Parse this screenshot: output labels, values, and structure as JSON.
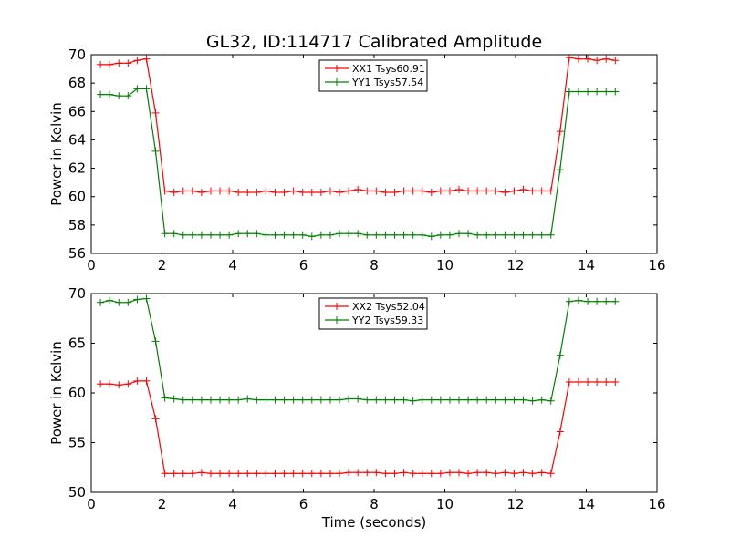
{
  "figure_title": "GL32, ID:114717 Calibrated Amplitude",
  "chart_data": [
    {
      "type": "line",
      "xlabel": "",
      "ylabel": "Power in Kelvin",
      "xlim": [
        0,
        16
      ],
      "ylim": [
        56,
        70
      ],
      "xticks": [
        "0",
        "2",
        "4",
        "6",
        "8",
        "10",
        "12",
        "14",
        "16"
      ],
      "yticks": [
        "56",
        "58",
        "60",
        "62",
        "64",
        "66",
        "68",
        "70"
      ],
      "grid": false,
      "legend_position": "top-center",
      "x": [
        0.26,
        0.52,
        0.78,
        1.04,
        1.3,
        1.56,
        1.82,
        2.08,
        2.34,
        2.6,
        2.86,
        3.12,
        3.38,
        3.64,
        3.9,
        4.16,
        4.42,
        4.68,
        4.94,
        5.2,
        5.46,
        5.72,
        5.98,
        6.24,
        6.5,
        6.76,
        7.02,
        7.28,
        7.54,
        7.8,
        8.06,
        8.32,
        8.58,
        8.84,
        9.1,
        9.36,
        9.62,
        9.88,
        10.14,
        10.4,
        10.66,
        10.92,
        11.18,
        11.44,
        11.7,
        11.96,
        12.22,
        12.48,
        12.74,
        13.0,
        13.26,
        13.52,
        13.78,
        14.04,
        14.3,
        14.56,
        14.82
      ],
      "series": [
        {
          "name": "XX1 Tsys60.91",
          "color": "#ff0000",
          "values": [
            69.3,
            69.3,
            69.4,
            69.4,
            69.6,
            69.7,
            65.9,
            60.4,
            60.3,
            60.4,
            60.4,
            60.3,
            60.4,
            60.4,
            60.4,
            60.3,
            60.3,
            60.3,
            60.4,
            60.3,
            60.3,
            60.4,
            60.3,
            60.3,
            60.3,
            60.4,
            60.3,
            60.4,
            60.5,
            60.4,
            60.4,
            60.3,
            60.3,
            60.4,
            60.4,
            60.4,
            60.3,
            60.4,
            60.4,
            60.5,
            60.4,
            60.4,
            60.4,
            60.4,
            60.3,
            60.4,
            60.5,
            60.4,
            60.4,
            60.4,
            64.6,
            69.8,
            69.7,
            69.7,
            69.6,
            69.7,
            69.6
          ]
        },
        {
          "name": "YY1 Tsys57.54",
          "color": "#008000",
          "values": [
            67.2,
            67.2,
            67.1,
            67.1,
            67.6,
            67.6,
            63.2,
            57.4,
            57.4,
            57.3,
            57.3,
            57.3,
            57.3,
            57.3,
            57.3,
            57.4,
            57.4,
            57.4,
            57.3,
            57.3,
            57.3,
            57.3,
            57.3,
            57.2,
            57.3,
            57.3,
            57.4,
            57.4,
            57.4,
            57.3,
            57.3,
            57.3,
            57.3,
            57.3,
            57.3,
            57.3,
            57.2,
            57.3,
            57.3,
            57.4,
            57.4,
            57.3,
            57.3,
            57.3,
            57.3,
            57.3,
            57.3,
            57.3,
            57.3,
            57.3,
            61.9,
            67.4,
            67.4,
            67.4,
            67.4,
            67.4,
            67.4
          ]
        }
      ]
    },
    {
      "type": "line",
      "xlabel": "Time (seconds)",
      "ylabel": "Power in Kelvin",
      "xlim": [
        0,
        16
      ],
      "ylim": [
        50,
        70
      ],
      "xticks": [
        "0",
        "2",
        "4",
        "6",
        "8",
        "10",
        "12",
        "14",
        "16"
      ],
      "yticks": [
        "50",
        "55",
        "60",
        "65",
        "70"
      ],
      "grid": false,
      "legend_position": "top-center",
      "x": [
        0.26,
        0.52,
        0.78,
        1.04,
        1.3,
        1.56,
        1.82,
        2.08,
        2.34,
        2.6,
        2.86,
        3.12,
        3.38,
        3.64,
        3.9,
        4.16,
        4.42,
        4.68,
        4.94,
        5.2,
        5.46,
        5.72,
        5.98,
        6.24,
        6.5,
        6.76,
        7.02,
        7.28,
        7.54,
        7.8,
        8.06,
        8.32,
        8.58,
        8.84,
        9.1,
        9.36,
        9.62,
        9.88,
        10.14,
        10.4,
        10.66,
        10.92,
        11.18,
        11.44,
        11.7,
        11.96,
        12.22,
        12.48,
        12.74,
        13.0,
        13.26,
        13.52,
        13.78,
        14.04,
        14.3,
        14.56,
        14.82
      ],
      "series": [
        {
          "name": "XX2 Tsys52.04",
          "color": "#ff0000",
          "values": [
            60.9,
            60.9,
            60.8,
            60.9,
            61.2,
            61.2,
            57.4,
            51.9,
            51.9,
            51.9,
            51.9,
            52.0,
            51.9,
            51.9,
            51.9,
            51.9,
            51.9,
            51.9,
            51.9,
            51.9,
            51.9,
            51.9,
            51.9,
            51.9,
            51.9,
            51.9,
            51.9,
            52.0,
            52.0,
            52.0,
            52.0,
            51.9,
            51.9,
            52.0,
            51.9,
            51.9,
            51.9,
            51.9,
            52.0,
            52.0,
            51.9,
            52.0,
            52.0,
            51.9,
            52.0,
            51.9,
            52.0,
            51.9,
            52.0,
            51.9,
            56.1,
            61.1,
            61.1,
            61.1,
            61.1,
            61.1,
            61.1
          ]
        },
        {
          "name": "YY2 Tsys59.33",
          "color": "#008000",
          "values": [
            69.1,
            69.3,
            69.1,
            69.1,
            69.4,
            69.5,
            65.2,
            59.5,
            59.4,
            59.3,
            59.3,
            59.3,
            59.3,
            59.3,
            59.3,
            59.3,
            59.4,
            59.3,
            59.3,
            59.3,
            59.3,
            59.3,
            59.3,
            59.3,
            59.3,
            59.3,
            59.3,
            59.4,
            59.4,
            59.3,
            59.3,
            59.3,
            59.3,
            59.3,
            59.2,
            59.3,
            59.3,
            59.3,
            59.3,
            59.3,
            59.3,
            59.3,
            59.3,
            59.3,
            59.3,
            59.3,
            59.3,
            59.2,
            59.3,
            59.2,
            63.8,
            69.2,
            69.3,
            69.2,
            69.2,
            69.2,
            69.2
          ]
        }
      ]
    }
  ]
}
